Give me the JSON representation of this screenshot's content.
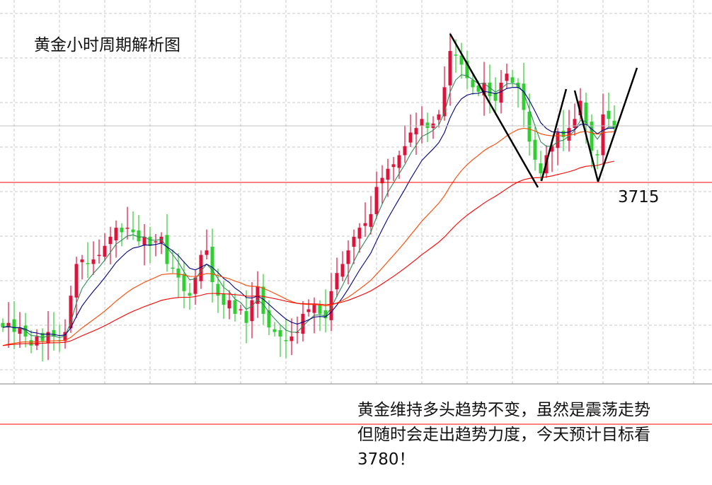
{
  "chart_data": {
    "type": "candlestick",
    "title": "黄金小时周期解析图",
    "timeframe_note": "hourly",
    "closes": [
      3683,
      3684,
      3682,
      3683,
      3681,
      3679,
      3681,
      3680,
      3682,
      3681,
      3680,
      3682,
      3690,
      3697,
      3698,
      3697,
      3698,
      3699,
      3701,
      3703,
      3705,
      3704,
      3705,
      3704,
      3702,
      3703,
      3701,
      3702,
      3703,
      3697,
      3696,
      3694,
      3691,
      3690,
      3694,
      3699,
      3700,
      3693,
      3690,
      3688,
      3689,
      3686,
      3687,
      3684,
      3689,
      3692,
      3686,
      3683,
      3682,
      3681,
      3680,
      3681,
      3682,
      3686,
      3687,
      3688,
      3686,
      3685,
      3691,
      3695,
      3697,
      3700,
      3703,
      3705,
      3706,
      3708,
      3714,
      3716,
      3718,
      3719,
      3721,
      3723,
      3726,
      3727,
      3729,
      3727,
      3728,
      3730,
      3736,
      3744,
      3743,
      3741,
      3738,
      3736,
      3735,
      3737,
      3734,
      3733,
      3737,
      3739,
      3737,
      3736,
      3731,
      3724,
      3720,
      3717,
      3721,
      3723,
      3726,
      3725,
      3727,
      3729,
      3733,
      3728,
      3722,
      3721,
      3730,
      3729,
      3727
    ],
    "moving_averages": [
      {
        "period": 5,
        "color": "#2e8b57"
      },
      {
        "period": 10,
        "color": "#000080"
      },
      {
        "period": 30,
        "color": "#ff4500"
      },
      {
        "period": 60,
        "color": "#ff0000"
      }
    ],
    "colors": {
      "up": "#dc143c",
      "down": "#32cd32",
      "support_line": "#ff0000",
      "trend_lines": "#000000",
      "current_price_line": "#c0c0c0"
    },
    "reference_lines": [
      {
        "value": 3715,
        "label": "3715"
      }
    ],
    "grid": true,
    "pattern_lines": "W-shaped double bottom on 3715 support with upward projection"
  },
  "title": "黄金小时周期解析图",
  "support_label": "3715",
  "note": {
    "line1": "黄金维持多头趋势不变，虽然是震荡走势",
    "line2": "但随时会走出趋势力度，今天预计目标看",
    "line3": "3780！"
  }
}
